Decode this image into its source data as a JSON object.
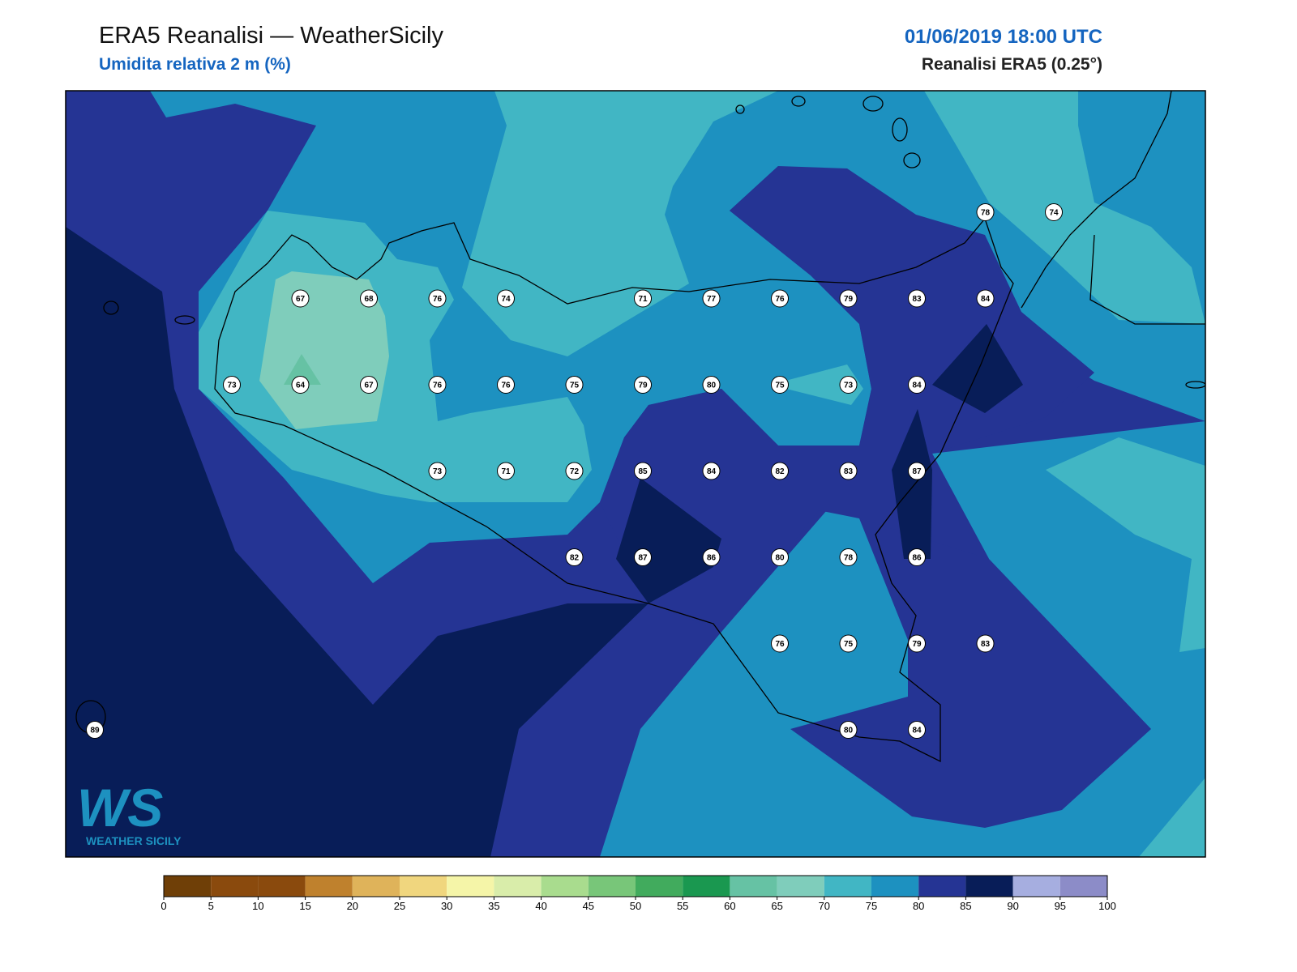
{
  "header": {
    "title": "ERA5 Reanalisi — WeatherSicily",
    "subtitle": "Umidita relativa 2 m (%)",
    "date": "01/06/2019 18:00 UTC",
    "source": "Reanalisi ERA5 (0.25°)"
  },
  "stations": {
    "rows": [
      [
        null,
        null,
        null,
        null,
        null,
        null,
        null,
        null,
        null,
        null,
        null,
        null,
        null,
        78,
        74
      ],
      [
        null,
        null,
        null,
        67,
        68,
        76,
        74,
        null,
        71,
        77,
        76,
        79,
        83,
        84,
        null
      ],
      [
        null,
        null,
        73,
        64,
        67,
        76,
        76,
        75,
        79,
        80,
        75,
        73,
        84,
        null,
        null
      ],
      [
        null,
        null,
        null,
        null,
        null,
        73,
        71,
        72,
        85,
        84,
        82,
        83,
        87,
        null,
        null
      ],
      [
        null,
        null,
        null,
        null,
        null,
        null,
        null,
        82,
        87,
        86,
        80,
        78,
        86,
        null,
        null
      ],
      [
        null,
        null,
        null,
        null,
        null,
        null,
        null,
        null,
        null,
        null,
        76,
        75,
        79,
        83,
        null
      ],
      [
        89,
        null,
        null,
        null,
        null,
        null,
        null,
        null,
        null,
        null,
        null,
        80,
        84,
        null,
        null
      ]
    ]
  },
  "colorbar": {
    "ticks": [
      0,
      5,
      10,
      15,
      20,
      25,
      30,
      35,
      40,
      45,
      50,
      55,
      60,
      65,
      70,
      75,
      80,
      85,
      90,
      95,
      100
    ],
    "colors": [
      "#6f3f07",
      "#8a4a0d",
      "#8a4a0d",
      "#bf812d",
      "#dfb35a",
      "#f0d67e",
      "#f5f5a8",
      "#d9edaa",
      "#a9dc8e",
      "#78c679",
      "#41ab5d",
      "#1a9850",
      "#66c2a4",
      "#7fcdbb",
      "#41b6c4",
      "#1d91c0",
      "#253494",
      "#081d58",
      "#a6aee0",
      "#8c8cc8"
    ]
  },
  "logo": {
    "letters": "WS",
    "name": "WEATHER SICILY"
  }
}
